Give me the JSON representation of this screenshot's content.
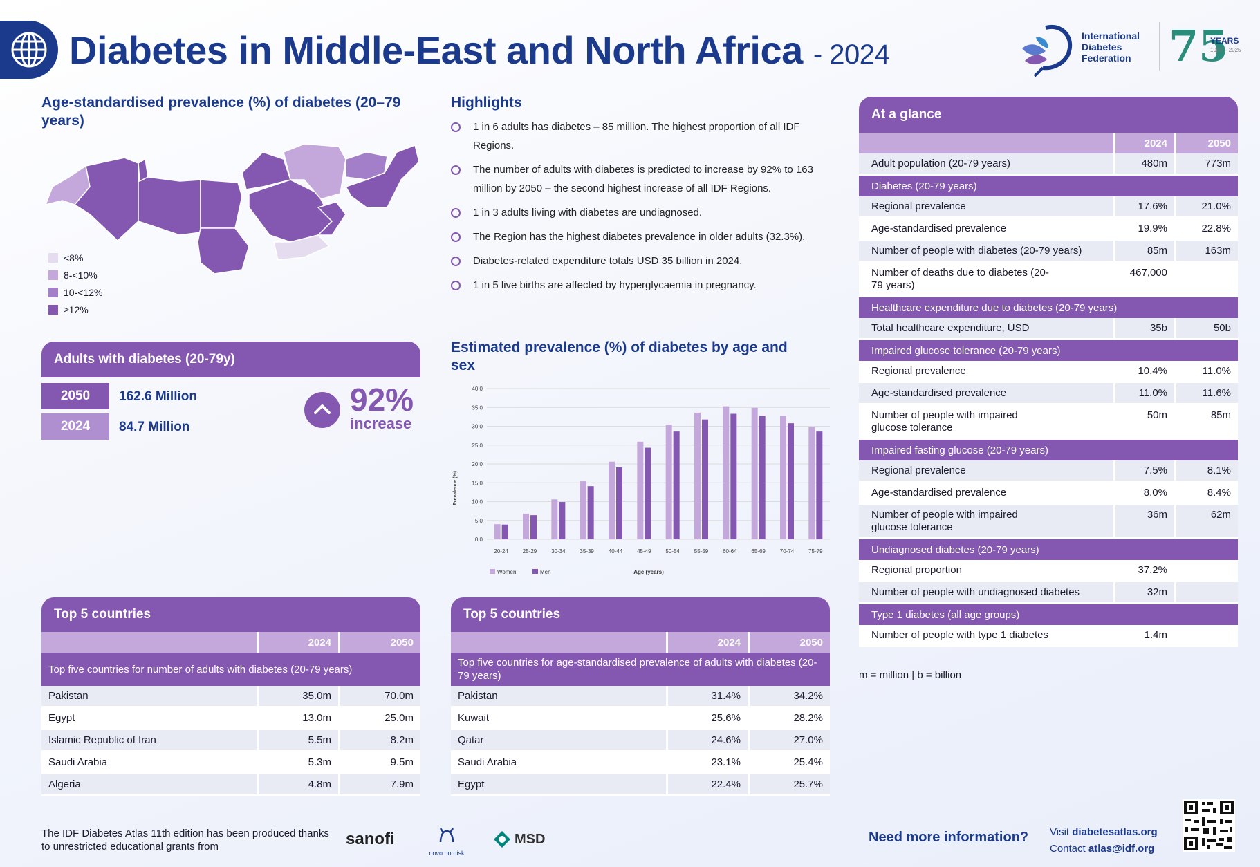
{
  "header": {
    "title": "Diabetes in Middle-East and North Africa",
    "year": "- 2024",
    "logo_name": "International Diabetes Federation",
    "logo_years": "YEARS",
    "logo_span": "1950 – 2025",
    "logo_seventy_five": "75"
  },
  "map": {
    "heading": "Age-standardised prevalence (%) of diabetes (20–79 years)",
    "legend": [
      {
        "label": "<8%",
        "color": "#e5ddef"
      },
      {
        "label": "8-<10%",
        "color": "#c4a8dc"
      },
      {
        "label": "10-<12%",
        "color": "#a37fc9"
      },
      {
        "label": "≥12%",
        "color": "#8458b0"
      }
    ]
  },
  "highlights": {
    "heading": "Highlights",
    "items": [
      "1 in 6 adults has diabetes – 85 million. The highest proportion of all IDF Regions.",
      "The number of adults with diabetes is predicted to increase by 92% to 163 million by 2050 – the second highest increase of all IDF Regions.",
      "1 in 3 adults living with diabetes are undiagnosed.",
      "The Region has the highest diabetes prevalence in older adults (32.3%).",
      "Diabetes-related expenditure totals USD 35 billion in 2024.",
      "1 in 5 live births are affected by hyperglycaemia in pregnancy."
    ]
  },
  "adults": {
    "heading": "Adults with diabetes (20-79y)",
    "y2050": "2050",
    "v2050": "162.6 Million",
    "y2024": "2024",
    "v2024": "84.7 Million",
    "pct": "92%",
    "pct_label": "increase"
  },
  "chart_data": {
    "type": "bar",
    "title": "Estimated prevalence (%) of diabetes by age and sex",
    "xlabel": "Age (years)",
    "ylabel": "Prevalence (%)",
    "ylim": [
      0,
      40
    ],
    "yticks": [
      "0.0",
      "5.0",
      "10.0",
      "15.0",
      "20.0",
      "25.0",
      "30.0",
      "35.0",
      "40.0"
    ],
    "categories": [
      "20-24",
      "25-29",
      "30-34",
      "35-39",
      "40-44",
      "45-49",
      "50-54",
      "55-59",
      "60-64",
      "65-69",
      "70-74",
      "75-79"
    ],
    "series": [
      {
        "name": "Women",
        "color": "#c4a8dc",
        "values": [
          4.0,
          6.8,
          10.6,
          15.4,
          20.6,
          25.9,
          30.4,
          33.6,
          35.3,
          34.9,
          32.8,
          29.8
        ]
      },
      {
        "name": "Men",
        "color": "#8458b0",
        "values": [
          3.9,
          6.4,
          9.9,
          14.1,
          19.1,
          24.3,
          28.6,
          31.8,
          33.3,
          32.8,
          30.8,
          28.6
        ]
      }
    ],
    "grid": true,
    "legend": "bottom-left"
  },
  "top5_number": {
    "heading": "Top 5 countries",
    "col2024": "2024",
    "col2050": "2050",
    "sub": "Top five countries for number of adults with diabetes (20-79 years)",
    "rows": [
      {
        "country": "Pakistan",
        "v2024": "35.0m",
        "v2050": "70.0m"
      },
      {
        "country": "Egypt",
        "v2024": "13.0m",
        "v2050": "25.0m"
      },
      {
        "country": "Islamic Republic of Iran",
        "v2024": "5.5m",
        "v2050": "8.2m"
      },
      {
        "country": "Saudi Arabia",
        "v2024": "5.3m",
        "v2050": "9.5m"
      },
      {
        "country": "Algeria",
        "v2024": "4.8m",
        "v2050": "7.9m"
      }
    ]
  },
  "top5_prev": {
    "heading": "Top 5 countries",
    "col2024": "2024",
    "col2050": "2050",
    "sub": "Top five countries for age-standardised prevalence of adults with diabetes (20-79 years)",
    "rows": [
      {
        "country": "Pakistan",
        "v2024": "31.4%",
        "v2050": "34.2%"
      },
      {
        "country": "Kuwait",
        "v2024": "25.6%",
        "v2050": "28.2%"
      },
      {
        "country": "Qatar",
        "v2024": "24.6%",
        "v2050": "27.0%"
      },
      {
        "country": "Saudi Arabia",
        "v2024": "23.1%",
        "v2050": "25.4%"
      },
      {
        "country": "Egypt",
        "v2024": "22.4%",
        "v2050": "25.7%"
      }
    ]
  },
  "glance": {
    "heading": "At a glance",
    "col2024": "2024",
    "col2050": "2050",
    "adult_pop": {
      "label": "Adult population (20-79 years)",
      "v2024": "480m",
      "v2050": "773m"
    },
    "diabetes": {
      "title": "Diabetes (20-79 years)",
      "rows": [
        {
          "label": "Regional prevalence",
          "v2024": "17.6%",
          "v2050": "21.0%"
        },
        {
          "label": "Age-standardised prevalence",
          "v2024": "19.9%",
          "v2050": "22.8%"
        },
        {
          "label": "Number of people with diabetes (20-79 years)",
          "v2024": "85m",
          "v2050": "163m"
        },
        {
          "label": "Number of deaths due to diabetes (20-79 years)",
          "v2024": "467,000",
          "v2050": ""
        }
      ]
    },
    "expenditure": {
      "title": "Healthcare expenditure due to diabetes (20-79 years)",
      "rows": [
        {
          "label": "Total healthcare expenditure, USD",
          "v2024": "35b",
          "v2050": "50b"
        }
      ]
    },
    "igt": {
      "title": "Impaired glucose tolerance (20-79 years)",
      "rows": [
        {
          "label": "Regional prevalence",
          "v2024": "10.4%",
          "v2050": "11.0%"
        },
        {
          "label": "Age-standardised prevalence",
          "v2024": "11.0%",
          "v2050": "11.6%"
        },
        {
          "label": "Number of people with impaired glucose tolerance",
          "v2024": "50m",
          "v2050": "85m"
        }
      ]
    },
    "ifg": {
      "title": "Impaired fasting glucose (20-79 years)",
      "rows": [
        {
          "label": "Regional prevalence",
          "v2024": "7.5%",
          "v2050": "8.1%"
        },
        {
          "label": "Age-standardised prevalence",
          "v2024": "8.0%",
          "v2050": "8.4%"
        },
        {
          "label": "Number of people with impaired glucose tolerance",
          "v2024": "36m",
          "v2050": "62m"
        }
      ]
    },
    "undiag": {
      "title": "Undiagnosed diabetes (20-79 years)",
      "rows": [
        {
          "label": "Regional proportion",
          "v2024": "37.2%",
          "v2050": ""
        },
        {
          "label": "Number of people with undiagnosed diabetes",
          "v2024": "32m",
          "v2050": ""
        }
      ]
    },
    "t1": {
      "title": "Type 1 diabetes (all age groups)",
      "rows": [
        {
          "label": "Number of people with type 1 diabetes",
          "v2024": "1.4m",
          "v2050": ""
        }
      ]
    },
    "note": "m = million | b = billion"
  },
  "footer": {
    "note": "The IDF Diabetes Atlas 11th edition has been produced thanks to unrestricted educational grants from",
    "sponsors": [
      "sanofi",
      "novo nordisk",
      "MSD"
    ],
    "need": "Need more information?",
    "visit_label": "Visit",
    "visit_url": "diabetesatlas.org",
    "contact_label": "Contact",
    "contact_email": "atlas@idf.org"
  }
}
